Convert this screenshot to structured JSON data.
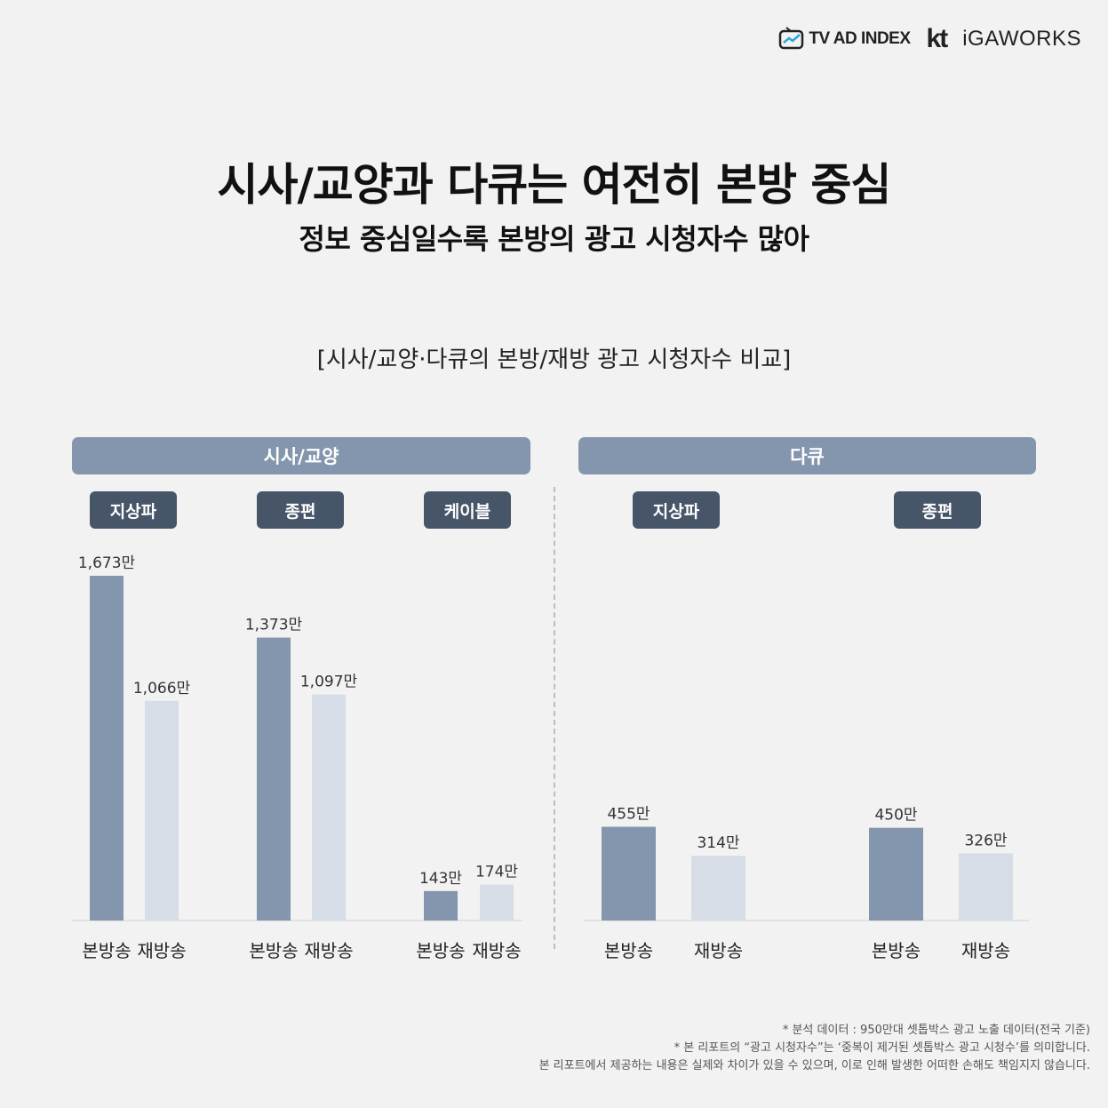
{
  "logos": {
    "tvadindex": "TV AD INDEX",
    "kt": "kt",
    "igaworks": "iGAWORKS"
  },
  "title": "시사/교양과 다큐는 여전히 본방 중심",
  "subtitle": "정보 중심일수록 본방의 광고 시청자수 많아",
  "colors": {
    "primary_bar": "#8496ad",
    "secondary_bar": "#d7dde6",
    "pill": "#475569",
    "header": "#8496ad"
  },
  "chart_data": {
    "type": "bar",
    "title": "[시사/교양·다큐의 본방/재방 광고 시청자수 비교]",
    "unit": "만",
    "series_names": [
      "본방송",
      "재방송"
    ],
    "groups": [
      {
        "name": "시사/교양",
        "subgroups": [
          {
            "name": "지상파",
            "values": [
              1673,
              1066
            ],
            "labels": [
              "1,673만",
              "1,066만"
            ],
            "categories": [
              "본방송",
              "재방송"
            ]
          },
          {
            "name": "종편",
            "values": [
              1373,
              1097
            ],
            "labels": [
              "1,373만",
              "1,097만"
            ],
            "categories": [
              "본방송",
              "재방송"
            ]
          },
          {
            "name": "케이블",
            "values": [
              143,
              174
            ],
            "labels": [
              "143만",
              "174만"
            ],
            "categories": [
              "본방송",
              "재방송"
            ]
          }
        ]
      },
      {
        "name": "다큐",
        "subgroups": [
          {
            "name": "지상파",
            "values": [
              455,
              314
            ],
            "labels": [
              "455만",
              "314만"
            ],
            "categories": [
              "본방송",
              "재방송"
            ]
          },
          {
            "name": "종편",
            "values": [
              450,
              326
            ],
            "labels": [
              "450만",
              "326만"
            ],
            "categories": [
              "본방송",
              "재방송"
            ]
          }
        ]
      }
    ]
  },
  "footnotes": [
    "* 분석 데이터 : 950만대 셋톱박스 광고 노출 데이터(전국 기준)",
    "* 본 리포트의 “광고 시청자수”는 ‘중복이 제거된 셋톱박스 광고 시청수’를 의미합니다.",
    "본 리포트에서 제공하는 내용은 실제와 차이가 있을 수 있으며, 이로 인해 발생한 어떠한 손해도 책임지지 않습니다."
  ]
}
